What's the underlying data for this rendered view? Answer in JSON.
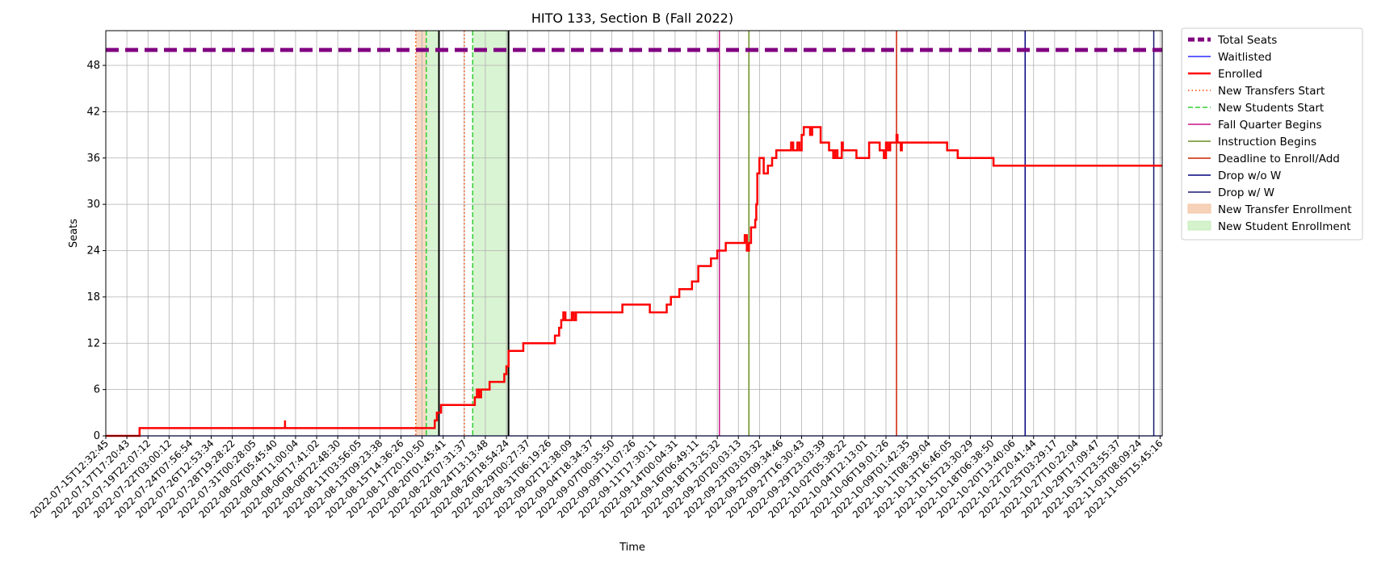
{
  "chart_data": {
    "type": "line",
    "title": "HITO 133, Section B (Fall 2022)",
    "xlabel": "Time",
    "ylabel": "Seats",
    "x_tick_labels": [
      "2022-07-15T12:32:45",
      "2022-07-17T17:20:43",
      "2022-07-19T22:07:12",
      "2022-07-22T03:00:12",
      "2022-07-24T07:56:54",
      "2022-07-26T12:53:34",
      "2022-07-28T19:28:22",
      "2022-07-31T00:28:05",
      "2022-08-02T05:45:40",
      "2022-08-04T11:00:04",
      "2022-08-06T17:41:02",
      "2022-08-08T22:48:30",
      "2022-08-11T03:56:05",
      "2022-08-13T09:23:38",
      "2022-08-15T14:36:26",
      "2022-08-17T20:10:50",
      "2022-08-20T01:45:41",
      "2022-08-22T07:31:37",
      "2022-08-24T13:13:48",
      "2022-08-26T18:54:24",
      "2022-08-29T00:27:37",
      "2022-08-31T06:19:26",
      "2022-09-02T12:38:09",
      "2022-09-04T18:34:37",
      "2022-09-07T00:35:50",
      "2022-09-09T11:07:26",
      "2022-09-11T17:30:11",
      "2022-09-14T00:04:31",
      "2022-09-16T06:49:11",
      "2022-09-18T13:25:32",
      "2022-09-20T20:03:13",
      "2022-09-23T03:03:32",
      "2022-09-25T09:34:46",
      "2022-09-27T16:30:43",
      "2022-09-29T23:03:39",
      "2022-10-02T05:38:22",
      "2022-10-04T12:13:01",
      "2022-10-06T19:01:26",
      "2022-10-09T01:42:35",
      "2022-10-11T08:39:04",
      "2022-10-13T16:46:05",
      "2022-10-15T23:30:29",
      "2022-10-18T06:38:50",
      "2022-10-20T13:40:06",
      "2022-10-22T20:41:44",
      "2022-10-25T03:29:17",
      "2022-10-27T10:22:04",
      "2022-10-29T17:09:47",
      "2022-10-31T23:55:37",
      "2022-11-03T08:09:24",
      "2022-11-05T15:45:16"
    ],
    "yticks": [
      0,
      6,
      12,
      18,
      24,
      30,
      36,
      42,
      48
    ],
    "ylim": [
      0,
      52.5
    ],
    "xlim": [
      0,
      50.1
    ],
    "grid": true,
    "legend_position": "outside-right",
    "total_seats": 50,
    "series": [
      {
        "name": "Total Seats",
        "color": "#800080",
        "style": "dashed-thick"
      },
      {
        "name": "Waitlisted",
        "color": "#0000ff",
        "style": "solid-thin",
        "points": [
          [
            0,
            0
          ],
          [
            50.1,
            0
          ]
        ]
      },
      {
        "name": "Enrolled",
        "color": "#ff0000",
        "style": "solid",
        "points": [
          [
            0,
            0
          ],
          [
            1.6,
            0
          ],
          [
            1.6,
            1
          ],
          [
            8.5,
            1
          ],
          [
            8.5,
            2
          ],
          [
            8.5,
            1
          ],
          [
            15.6,
            1
          ],
          [
            15.6,
            2
          ],
          [
            15.7,
            2
          ],
          [
            15.7,
            3
          ],
          [
            15.9,
            3
          ],
          [
            15.9,
            4
          ],
          [
            17.5,
            4
          ],
          [
            17.5,
            5
          ],
          [
            17.6,
            5
          ],
          [
            17.6,
            6
          ],
          [
            17.7,
            6
          ],
          [
            17.7,
            5
          ],
          [
            17.8,
            5
          ],
          [
            17.8,
            6
          ],
          [
            18.2,
            6
          ],
          [
            18.2,
            7
          ],
          [
            18.9,
            7
          ],
          [
            18.9,
            8
          ],
          [
            19.0,
            8
          ],
          [
            19.0,
            9
          ],
          [
            19.1,
            9
          ],
          [
            19.1,
            11
          ],
          [
            19.8,
            11
          ],
          [
            19.8,
            12
          ],
          [
            21.3,
            12
          ],
          [
            21.3,
            13
          ],
          [
            21.5,
            13
          ],
          [
            21.5,
            14
          ],
          [
            21.6,
            14
          ],
          [
            21.6,
            15
          ],
          [
            21.7,
            15
          ],
          [
            21.7,
            16
          ],
          [
            21.8,
            16
          ],
          [
            21.8,
            15
          ],
          [
            22.1,
            15
          ],
          [
            22.1,
            16
          ],
          [
            22.2,
            16
          ],
          [
            22.2,
            15
          ],
          [
            22.3,
            15
          ],
          [
            22.3,
            16
          ],
          [
            24.5,
            16
          ],
          [
            24.5,
            17
          ],
          [
            25.8,
            17
          ],
          [
            25.8,
            16
          ],
          [
            26.6,
            16
          ],
          [
            26.6,
            17
          ],
          [
            26.8,
            17
          ],
          [
            26.8,
            18
          ],
          [
            27.2,
            18
          ],
          [
            27.2,
            19
          ],
          [
            27.8,
            19
          ],
          [
            27.8,
            20
          ],
          [
            28.1,
            20
          ],
          [
            28.1,
            22
          ],
          [
            28.7,
            22
          ],
          [
            28.7,
            23
          ],
          [
            29.0,
            23
          ],
          [
            29.0,
            24
          ],
          [
            29.4,
            24
          ],
          [
            29.4,
            25
          ],
          [
            30.3,
            25
          ],
          [
            30.3,
            26
          ],
          [
            30.4,
            26
          ],
          [
            30.4,
            24
          ],
          [
            30.5,
            24
          ],
          [
            30.5,
            25
          ],
          [
            30.6,
            25
          ],
          [
            30.6,
            27
          ],
          [
            30.8,
            27
          ],
          [
            30.8,
            28
          ],
          [
            30.85,
            28
          ],
          [
            30.85,
            30
          ],
          [
            30.9,
            30
          ],
          [
            30.9,
            34
          ],
          [
            31.0,
            34
          ],
          [
            31.0,
            36
          ],
          [
            31.2,
            36
          ],
          [
            31.2,
            34
          ],
          [
            31.4,
            34
          ],
          [
            31.4,
            35
          ],
          [
            31.6,
            35
          ],
          [
            31.6,
            36
          ],
          [
            31.8,
            36
          ],
          [
            31.8,
            37
          ],
          [
            32.5,
            37
          ],
          [
            32.5,
            38
          ],
          [
            32.6,
            38
          ],
          [
            32.6,
            37
          ],
          [
            32.8,
            37
          ],
          [
            32.8,
            38
          ],
          [
            32.9,
            38
          ],
          [
            32.9,
            37
          ],
          [
            33.0,
            37
          ],
          [
            33.0,
            39
          ],
          [
            33.1,
            39
          ],
          [
            33.1,
            40
          ],
          [
            33.4,
            40
          ],
          [
            33.4,
            39
          ],
          [
            33.5,
            39
          ],
          [
            33.5,
            40
          ],
          [
            33.9,
            40
          ],
          [
            33.9,
            38
          ],
          [
            34.3,
            38
          ],
          [
            34.3,
            37
          ],
          [
            34.5,
            37
          ],
          [
            34.5,
            36
          ],
          [
            34.6,
            36
          ],
          [
            34.6,
            37
          ],
          [
            34.7,
            37
          ],
          [
            34.7,
            36
          ],
          [
            34.9,
            36
          ],
          [
            34.9,
            38
          ],
          [
            34.95,
            38
          ],
          [
            34.95,
            37
          ],
          [
            35.6,
            37
          ],
          [
            35.6,
            36
          ],
          [
            36.2,
            36
          ],
          [
            36.2,
            38
          ],
          [
            36.7,
            38
          ],
          [
            36.7,
            37
          ],
          [
            36.9,
            37
          ],
          [
            36.9,
            36
          ],
          [
            37.0,
            36
          ],
          [
            37.0,
            38
          ],
          [
            37.1,
            38
          ],
          [
            37.1,
            37
          ],
          [
            37.2,
            37
          ],
          [
            37.2,
            38
          ],
          [
            37.5,
            38
          ],
          [
            37.5,
            39
          ],
          [
            37.55,
            39
          ],
          [
            37.55,
            38
          ],
          [
            37.7,
            38
          ],
          [
            37.7,
            37
          ],
          [
            37.75,
            37
          ],
          [
            37.75,
            38
          ],
          [
            39.9,
            38
          ],
          [
            39.9,
            37
          ],
          [
            40.4,
            37
          ],
          [
            40.4,
            36
          ],
          [
            42.1,
            36
          ],
          [
            42.1,
            35
          ],
          [
            50.1,
            35
          ]
        ]
      }
    ],
    "vertical_lines": [
      {
        "name": "New Transfers Start",
        "x": 14.7,
        "color": "#ff4500",
        "style": "dotted"
      },
      {
        "name": "New Transfers Start",
        "x": 17.0,
        "color": "#ff4500",
        "style": "dotted"
      },
      {
        "name": "New Students Start",
        "x": 15.2,
        "color": "#32cd32",
        "style": "dashed"
      },
      {
        "name": "New Students Start",
        "x": 17.4,
        "color": "#32cd32",
        "style": "dashed"
      },
      {
        "name": "Fall Quarter Begins",
        "x": 29.1,
        "color": "#c71585",
        "style": "solid"
      },
      {
        "name": "Instruction Begins",
        "x": 30.5,
        "color": "#6b8e23",
        "style": "solid"
      },
      {
        "name": "Deadline to Enroll/Add",
        "x": 37.5,
        "color": "#cc2200",
        "style": "solid"
      },
      {
        "name": "Drop w/o W",
        "x": 43.6,
        "color": "#000080",
        "style": "solid"
      },
      {
        "name": "Drop w/ W",
        "x": 49.7,
        "color": "#191970",
        "style": "solid"
      },
      {
        "name": "",
        "x": 15.8,
        "color": "#000000",
        "style": "solid"
      },
      {
        "name": "",
        "x": 19.1,
        "color": "#000000",
        "style": "solid"
      }
    ],
    "shaded_regions": [
      {
        "name": "New Transfer Enrollment",
        "x0": 14.7,
        "x1": 15.2,
        "color": "#f4c7a8"
      },
      {
        "name": "New Student Enrollment",
        "x0": 15.2,
        "x1": 15.8,
        "color": "#c9efbf"
      },
      {
        "name": "New Student Enrollment",
        "x0": 17.4,
        "x1": 19.1,
        "color": "#c9efbf"
      }
    ],
    "legend": [
      {
        "label": "Total Seats",
        "kind": "line",
        "color": "#800080",
        "dash": "8,4",
        "width": 5
      },
      {
        "label": "Waitlisted",
        "kind": "line",
        "color": "#0000ff",
        "dash": "",
        "width": 1.3
      },
      {
        "label": "Enrolled",
        "kind": "line",
        "color": "#ff0000",
        "dash": "",
        "width": 2.5
      },
      {
        "label": "New Transfers Start",
        "kind": "line",
        "color": "#ff4500",
        "dash": "1.5,3",
        "width": 1.5
      },
      {
        "label": "New Students Start",
        "kind": "line",
        "color": "#32cd32",
        "dash": "6,3",
        "width": 1.5
      },
      {
        "label": "Fall Quarter Begins",
        "kind": "line",
        "color": "#c71585",
        "dash": "",
        "width": 1.5
      },
      {
        "label": "Instruction Begins",
        "kind": "line",
        "color": "#6b8e23",
        "dash": "",
        "width": 1.5
      },
      {
        "label": "Deadline to Enroll/Add",
        "kind": "line",
        "color": "#cc2200",
        "dash": "",
        "width": 1.5
      },
      {
        "label": "Drop w/o W",
        "kind": "line",
        "color": "#000080",
        "dash": "",
        "width": 1.5
      },
      {
        "label": "Drop w/ W",
        "kind": "line",
        "color": "#191970",
        "dash": "",
        "width": 1.5
      },
      {
        "label": "New Transfer Enrollment",
        "kind": "patch",
        "color": "#f4c7a8"
      },
      {
        "label": "New Student Enrollment",
        "kind": "patch",
        "color": "#c9efbf"
      }
    ]
  }
}
